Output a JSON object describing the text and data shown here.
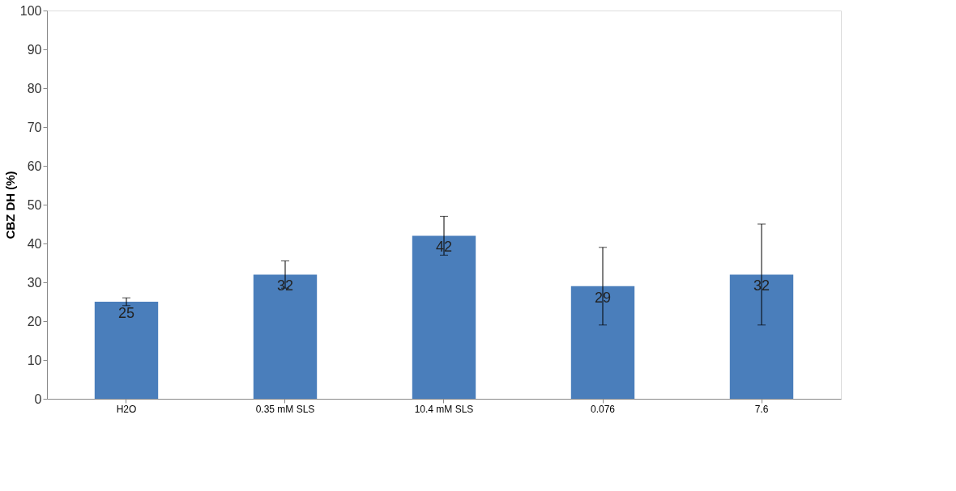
{
  "chart_data": {
    "type": "bar",
    "ylabel": "CBZ DH (%)",
    "categories": [
      "H2O",
      "0.35 mM SLS",
      "10.4 mM SLS",
      "0.076",
      "7.6"
    ],
    "values": [
      25,
      32,
      42,
      29,
      32
    ],
    "errors": [
      1,
      3.5,
      5,
      10,
      13
    ],
    "color": "#4a7ebb",
    "ylim": [
      0,
      100
    ],
    "yticks": [
      0,
      10,
      20,
      30,
      40,
      50,
      60,
      70,
      80,
      90,
      100
    ],
    "grid": false,
    "data_labels": true
  }
}
